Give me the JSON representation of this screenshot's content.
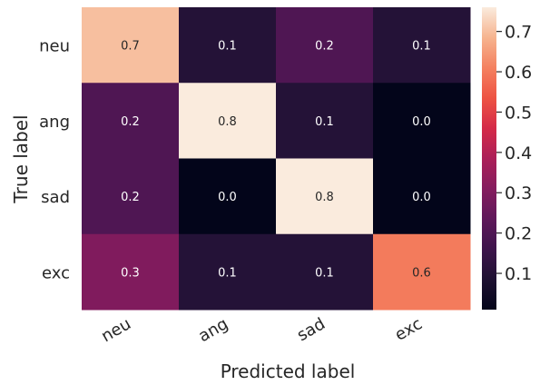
{
  "chart_data": {
    "type": "heatmap",
    "title": "",
    "xlabel": "Predicted label",
    "ylabel": "True label",
    "x_categories": [
      "neu",
      "ang",
      "sad",
      "exc"
    ],
    "y_categories": [
      "neu",
      "ang",
      "sad",
      "exc"
    ],
    "values": [
      [
        0.7,
        0.1,
        0.2,
        0.1
      ],
      [
        0.2,
        0.8,
        0.1,
        0.0
      ],
      [
        0.2,
        0.0,
        0.8,
        0.0
      ],
      [
        0.3,
        0.1,
        0.1,
        0.6
      ]
    ],
    "cell_labels": [
      [
        "0.7",
        "0.1",
        "0.2",
        "0.1"
      ],
      [
        "0.2",
        "0.8",
        "0.1",
        "0.0"
      ],
      [
        "0.2",
        "0.0",
        "0.8",
        "0.0"
      ],
      [
        "0.3",
        "0.1",
        "0.1",
        "0.6"
      ]
    ],
    "colormap": "rocket",
    "colorbar": {
      "range": [
        0.01,
        0.76
      ],
      "ticks": [
        0.1,
        0.2,
        0.3,
        0.4,
        0.5,
        0.6,
        0.7
      ],
      "tick_labels": [
        "0.1",
        "0.2",
        "0.3",
        "0.4",
        "0.5",
        "0.6",
        "0.7"
      ]
    },
    "grid": false,
    "legend": "colorbar-right"
  }
}
